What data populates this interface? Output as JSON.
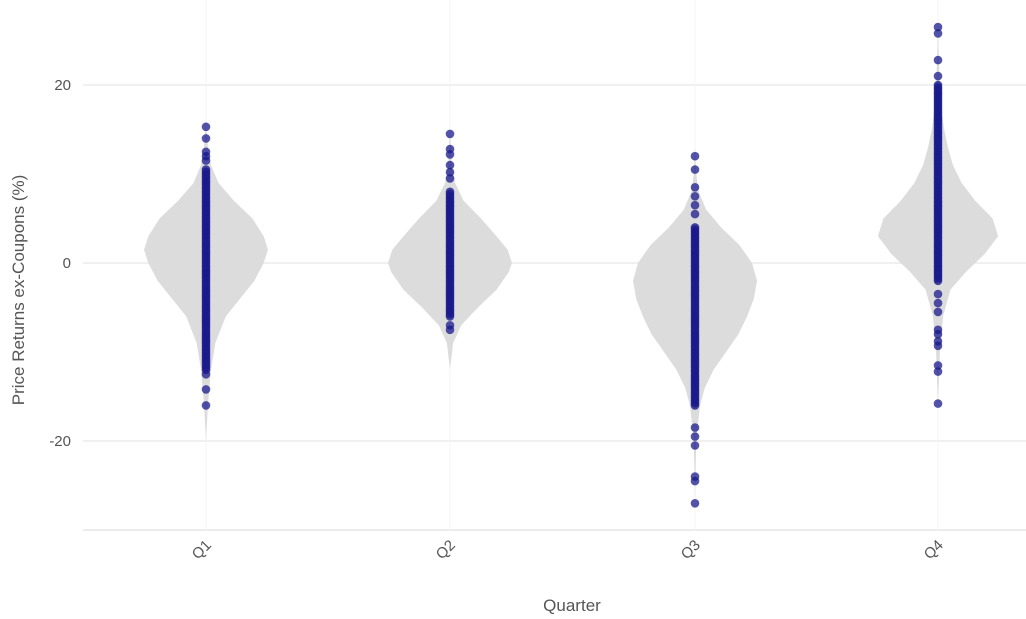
{
  "chart_data": {
    "type": "violin",
    "title": "",
    "xlabel": "Quarter",
    "ylabel": "Price Returns ex-Coupons (%)",
    "categories": [
      "Q1",
      "Q2",
      "Q3",
      "Q4"
    ],
    "ylim": [
      -30,
      30
    ],
    "yticks": [
      -20,
      0,
      20
    ],
    "ytick_labels": [
      "-20",
      "0",
      "20"
    ],
    "grid": true,
    "colors": {
      "violin": "#dcdcdc",
      "points": "#1a1a8c",
      "grid": "#ebebeb"
    },
    "groups": [
      {
        "category": "Q1",
        "violin": [
          [
            -20,
            0.0
          ],
          [
            -16,
            0.03
          ],
          [
            -12,
            0.08
          ],
          [
            -9,
            0.15
          ],
          [
            -6,
            0.32
          ],
          [
            -4,
            0.55
          ],
          [
            -2,
            0.78
          ],
          [
            0,
            0.93
          ],
          [
            1.5,
            1.0
          ],
          [
            3,
            0.93
          ],
          [
            5,
            0.75
          ],
          [
            7,
            0.45
          ],
          [
            9,
            0.2
          ],
          [
            11,
            0.08
          ],
          [
            13,
            0.03
          ],
          [
            16,
            0.0
          ]
        ],
        "dense_range": [
          -12,
          10.5
        ],
        "outliers": [
          15.3,
          14.0,
          12.5,
          12.0,
          11.5,
          -12.5,
          -14.2,
          -16.0
        ]
      },
      {
        "category": "Q2",
        "violin": [
          [
            -12,
            0.0
          ],
          [
            -9,
            0.05
          ],
          [
            -7,
            0.18
          ],
          [
            -5,
            0.45
          ],
          [
            -3,
            0.75
          ],
          [
            -1,
            0.95
          ],
          [
            0,
            1.0
          ],
          [
            1.5,
            0.93
          ],
          [
            3,
            0.75
          ],
          [
            5,
            0.5
          ],
          [
            7,
            0.22
          ],
          [
            9,
            0.08
          ],
          [
            11,
            0.03
          ],
          [
            15,
            0.0
          ]
        ],
        "dense_range": [
          -6,
          8
        ],
        "outliers": [
          14.5,
          12.8,
          12.2,
          11.0,
          10.2,
          9.5,
          -7.0,
          -7.5
        ]
      },
      {
        "category": "Q3",
        "violin": [
          [
            -27,
            0.0
          ],
          [
            -20,
            0.02
          ],
          [
            -16,
            0.08
          ],
          [
            -14,
            0.16
          ],
          [
            -12,
            0.3
          ],
          [
            -10,
            0.5
          ],
          [
            -8,
            0.7
          ],
          [
            -6,
            0.84
          ],
          [
            -4,
            0.95
          ],
          [
            -2,
            1.0
          ],
          [
            0,
            0.92
          ],
          [
            2,
            0.72
          ],
          [
            4,
            0.42
          ],
          [
            6,
            0.18
          ],
          [
            8,
            0.06
          ],
          [
            10,
            0.02
          ],
          [
            13,
            0.0
          ]
        ],
        "dense_range": [
          -16,
          4
        ],
        "outliers": [
          12.0,
          10.5,
          8.5,
          7.5,
          6.5,
          5.5,
          -18.5,
          -19.5,
          -20.5,
          -24.0,
          -24.5,
          -27.0
        ]
      },
      {
        "category": "Q4",
        "violin": [
          [
            -16,
            0.0
          ],
          [
            -10,
            0.03
          ],
          [
            -6,
            0.08
          ],
          [
            -3,
            0.2
          ],
          [
            -1,
            0.45
          ],
          [
            1,
            0.75
          ],
          [
            3,
            0.97
          ],
          [
            5,
            0.88
          ],
          [
            7,
            0.6
          ],
          [
            9,
            0.38
          ],
          [
            11,
            0.24
          ],
          [
            13,
            0.16
          ],
          [
            15,
            0.1
          ],
          [
            17,
            0.06
          ],
          [
            20,
            0.03
          ],
          [
            24,
            0.01
          ],
          [
            27,
            0.0
          ]
        ],
        "dense_range": [
          -2,
          20
        ],
        "outliers": [
          26.5,
          25.8,
          22.8,
          21.0,
          -3.5,
          -4.5,
          -5.5,
          -7.5,
          -8.0,
          -8.8,
          -9.3,
          -11.5,
          -12.2,
          -15.8
        ]
      }
    ]
  }
}
